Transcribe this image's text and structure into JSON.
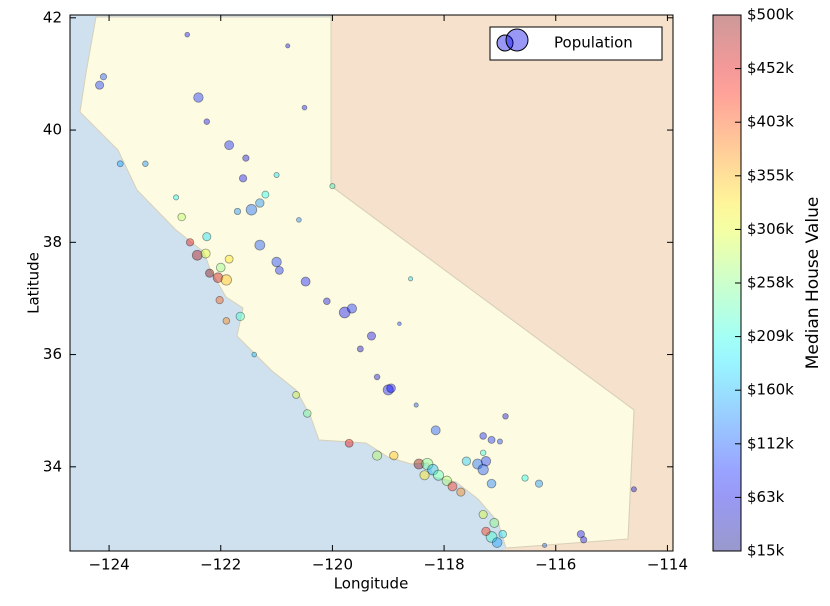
{
  "chart_data": {
    "type": "scatter",
    "xlabel": "Longitude",
    "ylabel": "Latitude",
    "xlim": [
      -124.7,
      -113.9
    ],
    "ylim": [
      32.5,
      42.05
    ],
    "xticks": [
      {
        "value": -124,
        "label": "−124"
      },
      {
        "value": -122,
        "label": "−122"
      },
      {
        "value": -120,
        "label": "−120"
      },
      {
        "value": -118,
        "label": "−118"
      },
      {
        "value": -116,
        "label": "−116"
      },
      {
        "value": -114,
        "label": "−114"
      }
    ],
    "yticks": [
      34,
      36,
      38,
      40,
      42
    ],
    "legend": "upper right",
    "alpha": 0.4,
    "series": [
      {
        "name": "Population",
        "x": [
          -124.17,
          -124.1,
          -123.8,
          -122.4,
          -122.25,
          -121.85,
          -121.6,
          -121.45,
          -121.3,
          -121.2,
          -121.0,
          -120.6,
          -122.42,
          -122.27,
          -122.2,
          -122.05,
          -121.9,
          -122.0,
          -122.55,
          -122.7,
          -122.25,
          -121.85,
          -121.9,
          -121.65,
          -122.02,
          -121.3,
          -121.0,
          -120.48,
          -120.1,
          -119.78,
          -119.65,
          -119.3,
          -119.0,
          -118.95,
          -119.5,
          -120.65,
          -120.45,
          -119.7,
          -119.2,
          -118.9,
          -118.45,
          -118.3,
          -118.2,
          -118.1,
          -118.35,
          -117.95,
          -117.85,
          -117.7,
          -117.4,
          -117.25,
          -117.6,
          -117.3,
          -117.15,
          -116.55,
          -116.3,
          -117.15,
          -117.05,
          -117.25,
          -117.1,
          -117.3,
          -116.95,
          -117.15,
          -118.15,
          -117.3,
          -116.9,
          -115.55,
          -115.5,
          -114.6,
          -118.6,
          -120.0,
          -120.5,
          -122.6,
          -123.35,
          -120.8,
          -121.4,
          -122.8,
          -121.7,
          -117.0,
          -118.5,
          -120.95,
          -119.2,
          -118.8,
          -116.2,
          -117.3,
          -121.55
        ],
        "y": [
          40.8,
          40.95,
          39.4,
          40.58,
          40.15,
          39.73,
          39.14,
          38.58,
          38.7,
          38.85,
          39.2,
          38.4,
          37.77,
          37.8,
          37.45,
          37.37,
          37.33,
          37.55,
          38.0,
          38.45,
          38.1,
          37.7,
          36.6,
          36.68,
          36.97,
          37.95,
          37.65,
          37.3,
          36.95,
          36.75,
          36.82,
          36.33,
          35.37,
          35.4,
          36.1,
          35.28,
          34.95,
          34.42,
          34.2,
          34.2,
          34.05,
          34.05,
          33.95,
          33.85,
          33.85,
          33.75,
          33.65,
          33.55,
          34.05,
          34.1,
          34.1,
          33.95,
          33.7,
          33.8,
          33.7,
          32.75,
          32.65,
          32.85,
          33.0,
          33.15,
          32.8,
          34.48,
          34.65,
          34.55,
          34.9,
          32.8,
          32.7,
          33.6,
          37.35,
          39.0,
          40.4,
          41.7,
          39.4,
          41.5,
          36.0,
          38.8,
          38.55,
          34.45,
          35.1,
          37.5,
          35.6,
          36.55,
          32.6,
          34.25,
          39.5
        ],
        "sizes": [
          1500,
          900,
          800,
          2000,
          700,
          1800,
          1200,
          2500,
          1600,
          1100,
          600,
          500,
          2200,
          1800,
          1500,
          2100,
          2400,
          1700,
          1200,
          1300,
          1500,
          1400,
          1000,
          1600,
          1200,
          2200,
          2000,
          1800,
          1000,
          2600,
          1900,
          1500,
          2300,
          1700,
          800,
          1100,
          1300,
          1400,
          1900,
          1600,
          2200,
          2800,
          2500,
          2300,
          1900,
          2000,
          1800,
          1500,
          2200,
          2000,
          1600,
          2400,
          1700,
          900,
          1200,
          2600,
          2100,
          1600,
          1800,
          1500,
          1300,
          1100,
          1800,
          1000,
          700,
          1200,
          900,
          600,
          400,
          600,
          500,
          500,
          700,
          400,
          500,
          600,
          900,
          600,
          400,
          1400,
          700,
          300,
          400,
          700,
          900
        ],
        "values": [
          95000,
          110000,
          150000,
          90000,
          70000,
          85000,
          75000,
          120000,
          140000,
          200000,
          180000,
          130000,
          480000,
          300000,
          500001,
          470000,
          350000,
          260000,
          450000,
          280000,
          180000,
          330000,
          380000,
          220000,
          400000,
          110000,
          100000,
          80000,
          60000,
          70000,
          90000,
          65000,
          80000,
          75000,
          50000,
          300000,
          250000,
          450000,
          280000,
          350000,
          500001,
          250000,
          160000,
          230000,
          330000,
          270000,
          420000,
          380000,
          120000,
          95000,
          170000,
          110000,
          130000,
          200000,
          140000,
          220000,
          150000,
          420000,
          260000,
          300000,
          180000,
          90000,
          110000,
          85000,
          60000,
          70000,
          65000,
          55000,
          180000,
          220000,
          80000,
          75000,
          140000,
          60000,
          170000,
          190000,
          140000,
          100000,
          110000,
          90000,
          60000,
          100000,
          120000,
          210000,
          60000
        ]
      }
    ],
    "colorbar": {
      "label": "Median House Value",
      "colormap": "jet",
      "lim": [
        14999,
        500001
      ],
      "ticks": [
        {
          "value": 14999,
          "label": "$15k"
        },
        {
          "value": 63499,
          "label": "$63k"
        },
        {
          "value": 111999,
          "label": "$112k"
        },
        {
          "value": 160500,
          "label": "$160k"
        },
        {
          "value": 209000,
          "label": "$209k"
        },
        {
          "value": 257500,
          "label": "$258k"
        },
        {
          "value": 306000,
          "label": "$306k"
        },
        {
          "value": 354500,
          "label": "$355k"
        },
        {
          "value": 403000,
          "label": "$403k"
        },
        {
          "value": 451500,
          "label": "$452k"
        },
        {
          "value": 500001,
          "label": "$500k"
        }
      ]
    }
  }
}
